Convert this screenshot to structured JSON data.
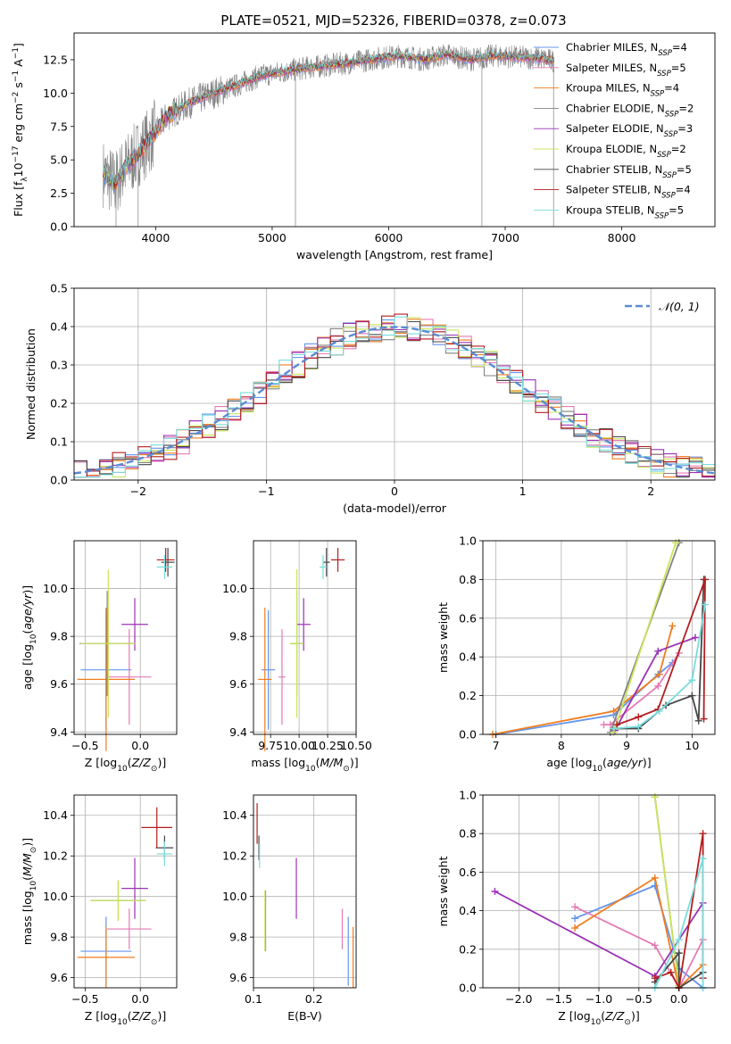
{
  "title": "PLATE=0521, MJD=52326, FIBERID=0378, z=0.073",
  "colors": [
    "#6495ed",
    "#e67ab4",
    "#f07d1e",
    "#828282",
    "#9b32b4",
    "#c8e65a",
    "#464646",
    "#b41e1e",
    "#78dcdc"
  ],
  "legend_spectrum": [
    {
      "model": "Chabrier MILES",
      "n": "4"
    },
    {
      "model": "Salpeter MILES",
      "n": "5"
    },
    {
      "model": "Kroupa MILES",
      "n": "4"
    },
    {
      "model": "Chabrier ELODIE",
      "n": "2"
    },
    {
      "model": "Salpeter ELODIE",
      "n": "3"
    },
    {
      "model": "Kroupa ELODIE",
      "n": "2"
    },
    {
      "model": "Chabrier STELIB",
      "n": "5"
    },
    {
      "model": "Salpeter STELIB",
      "n": "4"
    },
    {
      "model": "Kroupa STELIB",
      "n": "5"
    }
  ],
  "chart_data": [
    {
      "id": "spectrum",
      "type": "line",
      "title": "PLATE=0521, MJD=52326, FIBERID=0378, z=0.073",
      "xlabel": "wavelength [Angstrom, rest frame]",
      "ylabel": "Flux [f_λ 10^-17 erg cm^-2 s^-1 A^-1]",
      "xlim": [
        3300,
        8800
      ],
      "ylim": [
        0,
        14.5
      ],
      "xticks": [
        "4000",
        "5000",
        "6000",
        "7000",
        "8000"
      ],
      "yticks": [
        "0.0",
        "2.5",
        "5.0",
        "7.5",
        "10.0",
        "12.5"
      ],
      "grid": false,
      "legend": "upper right",
      "data_curve": {
        "name": "data",
        "x": [
          3550,
          3650,
          3750,
          3850,
          3950,
          4100,
          4300,
          4500,
          4700,
          4900,
          5100,
          5300,
          5500,
          5700,
          5900,
          6100,
          6300,
          6500,
          6700,
          6900,
          7100,
          7300,
          7420
        ],
        "y": [
          4.0,
          3.2,
          4.5,
          5.5,
          6.5,
          8.3,
          9.3,
          10.0,
          10.6,
          11.3,
          11.6,
          11.9,
          12.1,
          12.3,
          12.6,
          12.8,
          12.5,
          12.9,
          12.5,
          12.8,
          12.7,
          12.6,
          12.4
        ]
      }
    },
    {
      "id": "residuals",
      "type": "histogram",
      "xlabel": "(data-model)/error",
      "ylabel": "Normed distribution",
      "xlim": [
        -2.5,
        2.5
      ],
      "ylim": [
        0,
        0.5
      ],
      "xticks": [
        "−2",
        "−1",
        "0",
        "1",
        "2"
      ],
      "yticks": [
        "0.0",
        "0.1",
        "0.2",
        "0.3",
        "0.4",
        "0.5"
      ],
      "grid": true,
      "legend": "upper right",
      "reference_curve": "𝒩(0, 1)",
      "bin_width": 0.1
    },
    {
      "id": "age-vs-Z",
      "type": "errorbar",
      "xlabel": "Z [log10(Z/Z☉)]",
      "ylabel": "age  [log10(age/yr)]",
      "xlim": [
        -0.6,
        0.33
      ],
      "ylim": [
        9.39,
        10.2
      ],
      "xticks": [
        "−0.5",
        "0.0"
      ],
      "yticks": [
        "9.4",
        "9.6",
        "9.8",
        "10.0"
      ],
      "points": [
        {
          "x": -0.31,
          "xerr": 0.23,
          "y": 9.66,
          "yerr": 0.25
        },
        {
          "x": -0.1,
          "xerr": 0.2,
          "y": 9.63,
          "yerr": 0.2
        },
        {
          "x": -0.31,
          "xerr": 0.26,
          "y": 9.62,
          "yerr": 0.3
        },
        {
          "x": -0.3,
          "xerr": 0.25,
          "y": 9.77,
          "yerr": 0.22
        },
        {
          "x": -0.05,
          "xerr": 0.12,
          "y": 9.85,
          "yerr": 0.11
        },
        {
          "x": -0.29,
          "xerr": 0.25,
          "y": 9.77,
          "yerr": 0.31
        },
        {
          "x": 0.25,
          "xerr": 0.06,
          "y": 10.11,
          "yerr": 0.06
        },
        {
          "x": 0.23,
          "xerr": 0.08,
          "y": 10.12,
          "yerr": 0.05
        },
        {
          "x": 0.22,
          "xerr": 0.07,
          "y": 10.09,
          "yerr": 0.05
        }
      ]
    },
    {
      "id": "age-vs-mass",
      "type": "errorbar",
      "xlabel": "mass [log10(M/M☉)]",
      "ylabel": "",
      "xlim": [
        9.6,
        10.5
      ],
      "ylim": [
        9.39,
        10.2
      ],
      "xticks": [
        "9.75",
        "10.00",
        "10.25",
        "10.50"
      ],
      "yticks": [
        "9.4",
        "9.6",
        "9.8",
        "10.0"
      ],
      "points": [
        {
          "x": 9.73,
          "xerr": 0.06,
          "y": 9.66,
          "yerr": 0.25
        },
        {
          "x": 9.85,
          "xerr": 0.03,
          "y": 9.63,
          "yerr": 0.2
        },
        {
          "x": 9.7,
          "xerr": 0.06,
          "y": 9.62,
          "yerr": 0.3
        },
        {
          "x": 9.98,
          "xerr": 0.06,
          "y": 9.77,
          "yerr": 0.22
        },
        {
          "x": 10.04,
          "xerr": 0.06,
          "y": 9.85,
          "yerr": 0.11
        },
        {
          "x": 9.98,
          "xerr": 0.06,
          "y": 9.77,
          "yerr": 0.31
        },
        {
          "x": 10.24,
          "xerr": 0.03,
          "y": 10.11,
          "yerr": 0.06
        },
        {
          "x": 10.34,
          "xerr": 0.06,
          "y": 10.12,
          "yerr": 0.05
        },
        {
          "x": 10.21,
          "xerr": 0.03,
          "y": 10.09,
          "yerr": 0.05
        }
      ]
    },
    {
      "id": "mass-weight-vs-age",
      "type": "line",
      "xlabel": "age  [log10(age/yr)]",
      "ylabel": "mass weight",
      "xlim": [
        6.8,
        10.35
      ],
      "ylim": [
        0,
        1
      ],
      "xticks": [
        "7",
        "8",
        "9",
        "10"
      ],
      "yticks": [
        "0.0",
        "0.2",
        "0.4",
        "0.6",
        "0.8",
        "1.0"
      ],
      "grid": true,
      "series": [
        {
          "x": [
            7.0,
            8.8,
            9.48,
            9.7
          ],
          "y": [
            0.0,
            0.1,
            0.31,
            0.37
          ]
        },
        {
          "x": [
            8.65,
            8.75,
            9.48,
            9.8
          ],
          "y": [
            0.05,
            0.05,
            0.25,
            0.42
          ]
        },
        {
          "x": [
            6.95,
            8.8,
            9.5,
            9.7
          ],
          "y": [
            0.0,
            0.12,
            0.31,
            0.56
          ]
        },
        {
          "x": [
            8.75,
            9.8
          ],
          "y": [
            0.01,
            0.99
          ]
        },
        {
          "x": [
            8.82,
            9.48,
            10.05
          ],
          "y": [
            0.02,
            0.43,
            0.5
          ]
        },
        {
          "x": [
            8.8,
            9.75
          ],
          "y": [
            0.01,
            0.99
          ]
        },
        {
          "x": [
            8.8,
            9.18,
            9.6,
            10.0,
            10.1,
            10.18
          ],
          "y": [
            0.03,
            0.03,
            0.15,
            0.2,
            0.07,
            0.8
          ]
        },
        {
          "x": [
            8.85,
            9.18,
            9.48,
            10.2,
            10.18
          ],
          "y": [
            0.05,
            0.09,
            0.13,
            0.8,
            0.08
          ]
        },
        {
          "x": [
            8.8,
            9.18,
            9.5,
            10.0,
            10.2
          ],
          "y": [
            0.03,
            0.04,
            0.12,
            0.28,
            0.67
          ]
        }
      ]
    },
    {
      "id": "mass-vs-Z",
      "type": "errorbar",
      "xlabel": "Z [log10(Z/Z☉)]",
      "ylabel": "mass [log10(M/M☉)]",
      "xlim": [
        -0.6,
        0.33
      ],
      "ylim": [
        9.55,
        10.5
      ],
      "xticks": [
        "−0.5",
        "0.0"
      ],
      "yticks": [
        "9.6",
        "9.8",
        "10.0",
        "10.2",
        "10.4"
      ],
      "points": [
        {
          "x": -0.31,
          "xerr": 0.23,
          "y": 9.73,
          "yerr": 0.17
        },
        {
          "x": -0.1,
          "xerr": 0.2,
          "y": 9.84,
          "yerr": 0.1
        },
        {
          "x": -0.31,
          "xerr": 0.26,
          "y": 9.7,
          "yerr": 0.15
        },
        {
          "x": -0.2,
          "xerr": 0.25,
          "y": 9.98,
          "yerr": 0.1
        },
        {
          "x": -0.05,
          "xerr": 0.12,
          "y": 10.04,
          "yerr": 0.15
        },
        {
          "x": -0.2,
          "xerr": 0.25,
          "y": 9.98,
          "yerr": 0.1
        },
        {
          "x": 0.22,
          "xerr": 0.08,
          "y": 10.24,
          "yerr": 0.06
        },
        {
          "x": 0.15,
          "xerr": 0.14,
          "y": 10.34,
          "yerr": 0.1
        },
        {
          "x": 0.22,
          "xerr": 0.07,
          "y": 10.21,
          "yerr": 0.06
        }
      ]
    },
    {
      "id": "mass-vs-EBV",
      "type": "errorbar",
      "xlabel": "E(B-V)",
      "ylabel": "",
      "xlim": [
        0.1,
        0.27
      ],
      "ylim": [
        9.55,
        10.5
      ],
      "xticks": [
        "0.1",
        "0.2"
      ],
      "yticks": [
        "9.6",
        "9.8",
        "10.0",
        "10.2",
        "10.4"
      ],
      "points": [
        {
          "x": 0.257,
          "y": 9.73,
          "yerr": 0.17
        },
        {
          "x": 0.247,
          "y": 9.84,
          "yerr": 0.1
        },
        {
          "x": 0.265,
          "y": 9.7,
          "yerr": 0.15
        },
        {
          "x": 0.12,
          "y": 9.88,
          "yerr": 0.15
        },
        {
          "x": 0.171,
          "y": 10.04,
          "yerr": 0.15
        },
        {
          "x": 0.119,
          "y": 9.88,
          "yerr": 0.15
        },
        {
          "x": 0.109,
          "y": 10.24,
          "yerr": 0.06
        },
        {
          "x": 0.106,
          "y": 10.36,
          "yerr": 0.1
        },
        {
          "x": 0.11,
          "y": 10.2,
          "yerr": 0.06
        }
      ]
    },
    {
      "id": "mass-weight-vs-Z",
      "type": "line",
      "xlabel": "Z [log10(Z/Z☉)]",
      "ylabel": "mass weight",
      "xlim": [
        -2.45,
        0.45
      ],
      "ylim": [
        0,
        1
      ],
      "xticks": [
        "−2.0",
        "−1.5",
        "−1.0",
        "−0.5",
        "0.0"
      ],
      "yticks": [
        "0.0",
        "0.2",
        "0.4",
        "0.6",
        "0.8",
        "1.0"
      ],
      "grid": true,
      "series": [
        {
          "x": [
            -1.3,
            -0.3,
            0.0,
            0.3
          ],
          "y": [
            0.36,
            0.53,
            0.1,
            0.0
          ]
        },
        {
          "x": [
            -1.3,
            -0.3,
            0.0,
            0.3,
            0.3
          ],
          "y": [
            0.42,
            0.22,
            0.0,
            0.25,
            0.05
          ]
        },
        {
          "x": [
            -1.3,
            -0.3,
            0.0,
            0.3
          ],
          "y": [
            0.31,
            0.57,
            0.0,
            0.12
          ]
        },
        {
          "x": [
            -0.3,
            0.0
          ],
          "y": [
            0.99,
            0.01
          ]
        },
        {
          "x": [
            -2.3,
            -0.3,
            0.3
          ],
          "y": [
            0.5,
            0.06,
            0.44
          ]
        },
        {
          "x": [
            -0.3,
            0.0
          ],
          "y": [
            0.99,
            0.01
          ]
        },
        {
          "x": [
            -0.3,
            0.0,
            0.0,
            0.3
          ],
          "y": [
            0.03,
            0.18,
            0.0,
            0.08
          ]
        },
        {
          "x": [
            -0.3,
            -0.1,
            0.0,
            0.3,
            0.3
          ],
          "y": [
            0.05,
            0.08,
            0.0,
            0.8,
            0.05
          ]
        },
        {
          "x": [
            -0.3,
            0.0,
            0.3,
            0.3
          ],
          "y": [
            0.0,
            0.25,
            0.67,
            0.0
          ]
        }
      ]
    }
  ]
}
